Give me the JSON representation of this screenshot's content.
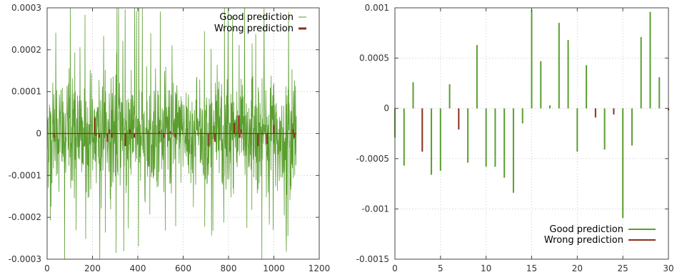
{
  "colors": {
    "good": "#5a9e2f",
    "wrong": "#8b2e1a"
  },
  "chart_data": [
    {
      "type": "bar",
      "series": [
        {
          "name": "Good prediction",
          "color": "#5a9e2f"
        },
        {
          "name": "Wrong prediction",
          "color": "#8b2e1a"
        }
      ],
      "legend_position": "top-right",
      "xlim": [
        0,
        1200
      ],
      "ylim": [
        -0.0003,
        0.0003
      ],
      "xticks": [
        0,
        200,
        400,
        600,
        800,
        1000,
        1200
      ],
      "yticks": [
        -0.0003,
        -0.0002,
        -0.0001,
        0,
        0.0001,
        0.0002,
        0.0003
      ],
      "xtick_labels": [
        "0",
        "200",
        "400",
        "600",
        "800",
        "1000",
        "1200"
      ],
      "ytick_labels": [
        "-0.0003",
        "-0.0002",
        "-0.0001",
        "0",
        "0.0001",
        "0.0002",
        "0.0003"
      ],
      "n_points": 1100,
      "amplitude": 0.00012,
      "wrong_points": [
        {
          "x": 30,
          "y": -1e-05
        },
        {
          "x": 210,
          "y": 3.7e-05
        },
        {
          "x": 215,
          "y": -5e-06
        },
        {
          "x": 230,
          "y": -1e-05
        },
        {
          "x": 265,
          "y": -2e-05
        },
        {
          "x": 275,
          "y": 1e-05
        },
        {
          "x": 285,
          "y": -1e-05
        },
        {
          "x": 345,
          "y": -3e-05
        },
        {
          "x": 365,
          "y": 1e-05
        },
        {
          "x": 385,
          "y": -1e-05
        },
        {
          "x": 495,
          "y": 5e-06
        },
        {
          "x": 515,
          "y": -1e-05
        },
        {
          "x": 545,
          "y": 5e-06
        },
        {
          "x": 565,
          "y": -1e-05
        },
        {
          "x": 710,
          "y": -3e-05
        },
        {
          "x": 740,
          "y": -2e-05
        },
        {
          "x": 825,
          "y": 2.5e-05
        },
        {
          "x": 845,
          "y": 4.3e-05
        },
        {
          "x": 850,
          "y": -1e-05
        },
        {
          "x": 855,
          "y": 1e-05
        },
        {
          "x": 930,
          "y": -3e-05
        },
        {
          "x": 970,
          "y": -2.5e-05
        },
        {
          "x": 1000,
          "y": 2e-05
        },
        {
          "x": 1085,
          "y": 1e-05
        },
        {
          "x": 1090,
          "y": -1e-05
        }
      ]
    },
    {
      "type": "bar",
      "series": [
        {
          "name": "Good prediction",
          "color": "#5a9e2f"
        },
        {
          "name": "Wrong prediction",
          "color": "#8b2e1a"
        }
      ],
      "legend_position": "bottom-right",
      "xlim": [
        0,
        30
      ],
      "ylim": [
        -0.0015,
        0.001
      ],
      "xticks": [
        0,
        5,
        10,
        15,
        20,
        25,
        30
      ],
      "yticks": [
        -0.0015,
        -0.001,
        -0.0005,
        0,
        0.0005,
        0.001
      ],
      "xtick_labels": [
        "0",
        "5",
        "10",
        "15",
        "20",
        "25",
        "30"
      ],
      "ytick_labels": [
        "-0.0015",
        "-0.001",
        "-0.0005",
        "0",
        "0.0005",
        "0.001"
      ],
      "points": [
        {
          "x": 0,
          "y": -0.00029,
          "class": "good"
        },
        {
          "x": 1,
          "y": -0.00057,
          "class": "good"
        },
        {
          "x": 2,
          "y": 0.00026,
          "class": "good"
        },
        {
          "x": 3,
          "y": -0.00043,
          "class": "wrong"
        },
        {
          "x": 4,
          "y": -0.00066,
          "class": "good"
        },
        {
          "x": 5,
          "y": -0.00062,
          "class": "good"
        },
        {
          "x": 6,
          "y": 0.00024,
          "class": "good"
        },
        {
          "x": 7,
          "y": -0.00021,
          "class": "wrong"
        },
        {
          "x": 8,
          "y": -0.00054,
          "class": "good"
        },
        {
          "x": 9,
          "y": 0.00063,
          "class": "good"
        },
        {
          "x": 10,
          "y": -0.00058,
          "class": "good"
        },
        {
          "x": 11,
          "y": -0.00058,
          "class": "good"
        },
        {
          "x": 12,
          "y": -0.00069,
          "class": "good"
        },
        {
          "x": 13,
          "y": -0.00084,
          "class": "good"
        },
        {
          "x": 14,
          "y": -0.00015,
          "class": "good"
        },
        {
          "x": 15,
          "y": 0.00098,
          "class": "good"
        },
        {
          "x": 16,
          "y": 0.00047,
          "class": "good"
        },
        {
          "x": 17,
          "y": 3e-05,
          "class": "good"
        },
        {
          "x": 18,
          "y": 0.00085,
          "class": "good"
        },
        {
          "x": 19,
          "y": 0.00068,
          "class": "good"
        },
        {
          "x": 20,
          "y": -0.00043,
          "class": "good"
        },
        {
          "x": 21,
          "y": 0.00043,
          "class": "good"
        },
        {
          "x": 22,
          "y": -9e-05,
          "class": "wrong"
        },
        {
          "x": 23,
          "y": -0.00041,
          "class": "good"
        },
        {
          "x": 24,
          "y": -6e-05,
          "class": "wrong"
        },
        {
          "x": 25,
          "y": -0.00109,
          "class": "good"
        },
        {
          "x": 26,
          "y": -0.00037,
          "class": "good"
        },
        {
          "x": 27,
          "y": 0.00071,
          "class": "good"
        },
        {
          "x": 28,
          "y": 0.00096,
          "class": "good"
        },
        {
          "x": 29,
          "y": 0.00031,
          "class": "good"
        },
        {
          "x": 30,
          "y": -2e-05,
          "class": "wrong"
        }
      ]
    }
  ]
}
